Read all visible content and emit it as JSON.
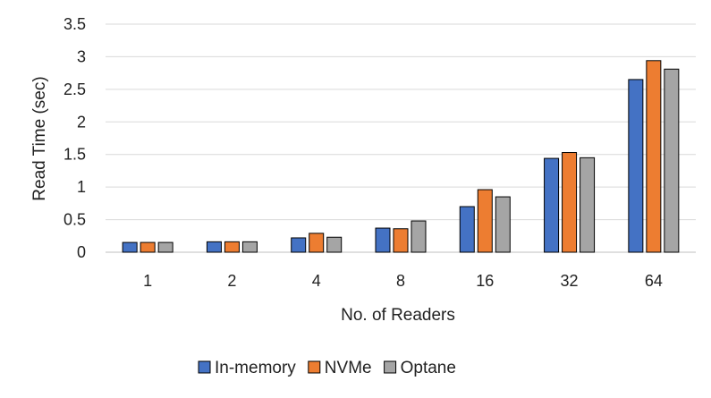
{
  "chart_data": {
    "type": "bar",
    "title": "",
    "xlabel": "No. of Readers",
    "ylabel": "Read Time (sec)",
    "categories": [
      "1",
      "2",
      "4",
      "8",
      "16",
      "32",
      "64"
    ],
    "series": [
      {
        "name": "In-memory",
        "color": "#4472C4",
        "values": [
          0.15,
          0.16,
          0.22,
          0.37,
          0.7,
          1.44,
          2.65
        ]
      },
      {
        "name": "NVMe",
        "color": "#ED7D31",
        "values": [
          0.15,
          0.16,
          0.29,
          0.36,
          0.96,
          1.53,
          2.94
        ]
      },
      {
        "name": "Optane",
        "color": "#A5A5A5",
        "values": [
          0.15,
          0.16,
          0.23,
          0.48,
          0.85,
          1.45,
          2.81
        ]
      }
    ],
    "ylim": [
      0,
      3.5
    ],
    "yticks": [
      "0",
      "0.5",
      "1",
      "1.5",
      "2",
      "2.5",
      "3",
      "3.5"
    ],
    "grid": true,
    "legend_position": "bottom"
  }
}
